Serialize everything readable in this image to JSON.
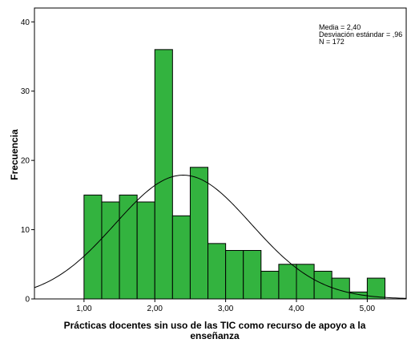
{
  "chart_data": {
    "type": "bar",
    "subtype": "histogram",
    "xlabel_lines": [
      "Prácticas docentes sin uso de las TIC como recurso de apoyo a la",
      "enseñanza"
    ],
    "ylabel": "Frecuencia",
    "x_ticks": [
      "1,00",
      "2,00",
      "3,00",
      "4,00",
      "5,00"
    ],
    "x_tick_values": [
      1,
      2,
      3,
      4,
      5
    ],
    "y_ticks": [
      "0",
      "10",
      "20",
      "30",
      "40"
    ],
    "y_tick_values": [
      0,
      10,
      20,
      30,
      40
    ],
    "xlim": [
      0.3,
      5.55
    ],
    "ylim": [
      0,
      42
    ],
    "bin_width": 0.25,
    "bins": [
      {
        "start": 1.0,
        "value": 15
      },
      {
        "start": 1.25,
        "value": 14
      },
      {
        "start": 1.5,
        "value": 15
      },
      {
        "start": 1.75,
        "value": 14
      },
      {
        "start": 2.0,
        "value": 36
      },
      {
        "start": 2.25,
        "value": 12
      },
      {
        "start": 2.5,
        "value": 19
      },
      {
        "start": 2.75,
        "value": 8
      },
      {
        "start": 3.0,
        "value": 7
      },
      {
        "start": 3.25,
        "value": 7
      },
      {
        "start": 3.5,
        "value": 4
      },
      {
        "start": 3.75,
        "value": 5
      },
      {
        "start": 4.0,
        "value": 5
      },
      {
        "start": 4.25,
        "value": 4
      },
      {
        "start": 4.5,
        "value": 3
      },
      {
        "start": 4.75,
        "value": 1
      },
      {
        "start": 5.0,
        "value": 3
      }
    ],
    "stats": {
      "mean_label": "Media = 2,40",
      "sd_label": "Desviación estándar = ,96",
      "n_label": "N = 172"
    },
    "normal_curve": {
      "mean": 2.4,
      "sd": 0.96,
      "n": 172
    },
    "bar_color": "#33b33f",
    "bar_edge_color": "#000000",
    "grid": false,
    "legend": "none"
  }
}
